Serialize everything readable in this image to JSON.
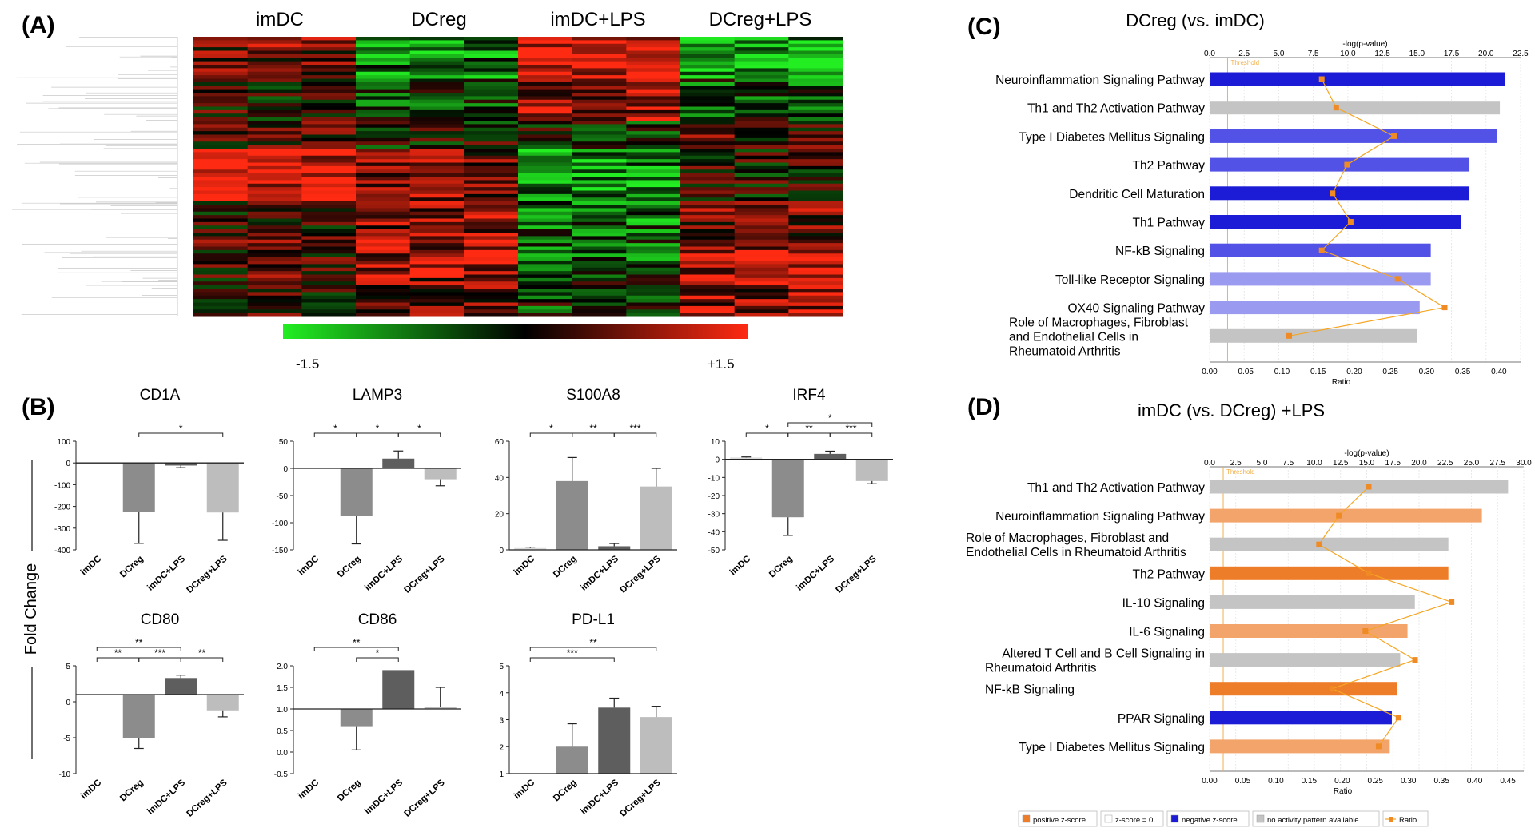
{
  "panels": {
    "A": "(A)",
    "B": "(B)",
    "C": "(C)",
    "D": "(D)"
  },
  "heatmap": {
    "groups": [
      "imDC",
      "DCreg",
      "imDC+LPS",
      "DCreg+LPS"
    ],
    "scale_min": "-1.5",
    "scale_max": "+1.5",
    "colors": {
      "low": "#22ee22",
      "mid": "#000000",
      "high": "#ff2a12"
    }
  },
  "bar_panel": {
    "ylabel": "Fold Change",
    "bar_colors": [
      "#dcdcdc",
      "#8c8c8c",
      "#5e5e5e",
      "#bdbdbd"
    ]
  },
  "ipa_legend": [
    "positive z-score",
    "z-score = 0",
    "negative z-score",
    "no activity pattern available",
    "Ratio"
  ],
  "ipa_colors": {
    "threshold": "#f2b04a",
    "ratio_line": "#f5a623",
    "ratio_marker": "#f08a24",
    "neg_dark": "#1c1cd6",
    "neg_mid": "#5252e6",
    "neg_light": "#9a9af0",
    "pos_dark": "#ee7d2a",
    "pos_light": "#f3a46a",
    "none": "#c4c4c4"
  },
  "chart_data": [
    {
      "id": "CD1A",
      "type": "bar",
      "title": "CD1A",
      "categories": [
        "imDC",
        "DCreg",
        "imDC+LPS",
        "DCreg+LPS"
      ],
      "values": [
        0,
        -225,
        -12,
        -228
      ],
      "errors": [
        0,
        145,
        10,
        128
      ],
      "ylim": [
        -400,
        100
      ],
      "yticks": [
        "100",
        "0",
        "-100",
        "-200",
        "-300",
        "-400"
      ],
      "baseline": 0,
      "sig": [
        {
          "from": 1,
          "to": 3,
          "label": "*"
        }
      ]
    },
    {
      "id": "LAMP3",
      "type": "bar",
      "title": "LAMP3",
      "categories": [
        "imDC",
        "DCreg",
        "imDC+LPS",
        "DCreg+LPS"
      ],
      "values": [
        0,
        -87,
        18,
        -20
      ],
      "errors": [
        0,
        52,
        14,
        12
      ],
      "ylim": [
        -150,
        50
      ],
      "yticks": [
        "50",
        "0",
        "-50",
        "-100",
        "-150"
      ],
      "baseline": 0,
      "sig": [
        {
          "from": 0,
          "to": 1,
          "label": "*"
        },
        {
          "from": 1,
          "to": 2,
          "label": "*"
        },
        {
          "from": 2,
          "to": 3,
          "label": "*"
        }
      ]
    },
    {
      "id": "S100A8",
      "type": "bar",
      "title": "S100A8",
      "categories": [
        "imDC",
        "DCreg",
        "imDC+LPS",
        "DCreg+LPS"
      ],
      "values": [
        1,
        38,
        2,
        35
      ],
      "errors": [
        0.5,
        13,
        1.5,
        10
      ],
      "ylim": [
        0,
        60
      ],
      "yticks": [
        "60",
        "40",
        "20",
        "0"
      ],
      "baseline": 0,
      "sig": [
        {
          "from": 0,
          "to": 1,
          "label": "*"
        },
        {
          "from": 1,
          "to": 2,
          "label": "**"
        },
        {
          "from": 2,
          "to": 3,
          "label": "***"
        }
      ]
    },
    {
      "id": "IRF4",
      "type": "bar",
      "title": "IRF4",
      "categories": [
        "imDC",
        "DCreg",
        "imDC+LPS",
        "DCreg+LPS"
      ],
      "values": [
        1,
        -32,
        3,
        -12
      ],
      "errors": [
        0.3,
        10,
        1.5,
        1.5
      ],
      "ylim": [
        -50,
        10
      ],
      "yticks": [
        "10",
        "0",
        "-10",
        "-20",
        "-30",
        "-40",
        "-50"
      ],
      "baseline": 0,
      "sig": [
        {
          "from": 0,
          "to": 1,
          "label": "*"
        },
        {
          "from": 1,
          "to": 2,
          "label": "**"
        },
        {
          "from": 2,
          "to": 3,
          "label": "***"
        },
        {
          "from": 1,
          "to": 3,
          "label": "*"
        }
      ]
    },
    {
      "id": "CD80",
      "type": "bar",
      "title": "CD80",
      "categories": [
        "imDC",
        "DCreg",
        "imDC+LPS",
        "DCreg+LPS"
      ],
      "values": [
        1,
        -5,
        3.3,
        -1.2
      ],
      "errors": [
        0,
        1.5,
        0.4,
        0.9
      ],
      "ylim": [
        -10,
        5
      ],
      "yticks": [
        "5",
        "0",
        "-5",
        "-10"
      ],
      "baseline": 1,
      "sig": [
        {
          "from": 0,
          "to": 1,
          "label": "**"
        },
        {
          "from": 1,
          "to": 2,
          "label": "***"
        },
        {
          "from": 2,
          "to": 3,
          "label": "**"
        },
        {
          "from": 0,
          "to": 2,
          "label": "**"
        }
      ]
    },
    {
      "id": "CD86",
      "type": "bar",
      "title": "CD86",
      "categories": [
        "imDC",
        "DCreg",
        "imDC+LPS",
        "DCreg+LPS"
      ],
      "values": [
        1,
        0.6,
        1.9,
        1.05
      ],
      "errors": [
        0,
        0.55,
        0,
        0.45
      ],
      "ylim": [
        -0.5,
        2.0
      ],
      "yticks": [
        "2.0",
        "1.5",
        "1.0",
        "0.5",
        "0.0",
        "-0.5"
      ],
      "baseline": 1,
      "sig": [
        {
          "from": 1,
          "to": 2,
          "label": "*"
        },
        {
          "from": 0,
          "to": 2,
          "label": "**"
        }
      ]
    },
    {
      "id": "PD-L1",
      "type": "bar",
      "title": "PD-L1",
      "categories": [
        "imDC",
        "DCreg",
        "imDC+LPS",
        "DCreg+LPS"
      ],
      "values": [
        1,
        2.0,
        3.45,
        3.1
      ],
      "errors": [
        0,
        0.85,
        0.35,
        0.4
      ],
      "ylim": [
        1,
        5
      ],
      "yticks": [
        "5",
        "4",
        "3",
        "2",
        "1"
      ],
      "baseline": 1,
      "sig": [
        {
          "from": 0,
          "to": 2,
          "label": "***"
        },
        {
          "from": 0,
          "to": 3,
          "label": "**"
        }
      ]
    },
    {
      "id": "IPA-C",
      "type": "bar",
      "title": "DCreg (vs. imDC)",
      "top_axis_label": "-log(p-value)",
      "bottom_axis_label": "Ratio",
      "threshold_label": "Threshold",
      "top_ticks": [
        0,
        2.5,
        5.0,
        7.5,
        10.0,
        12.5,
        15.0,
        17.5,
        20.0,
        22.5
      ],
      "top_tick_labels": [
        "0.0",
        "2.5",
        "5.0",
        "7.5",
        "10.0",
        "12.5",
        "15.0",
        "17.5",
        "20.0",
        "22.5"
      ],
      "bottom_ticks": [
        0,
        0.05,
        0.1,
        0.15,
        0.2,
        0.25,
        0.3,
        0.35,
        0.4
      ],
      "bottom_tick_labels": [
        "0.00",
        "0.05",
        "0.10",
        "0.15",
        "0.20",
        "0.25",
        "0.30",
        "0.35",
        "0.40"
      ],
      "top_max": 22.5,
      "ratio_max": 0.43,
      "threshold": 1.3,
      "pathways": [
        {
          "label": [
            "Neuroinflammation Signaling Pathway"
          ],
          "logp": 21.4,
          "ratio": 0.155,
          "color": "neg_dark"
        },
        {
          "label": [
            "Th1 and Th2 Activation Pathway"
          ],
          "logp": 21.0,
          "ratio": 0.175,
          "color": "none"
        },
        {
          "label": [
            "Type I Diabetes Mellitus Signaling"
          ],
          "logp": 20.8,
          "ratio": 0.255,
          "color": "neg_mid"
        },
        {
          "label": [
            "Th2 Pathway"
          ],
          "logp": 18.8,
          "ratio": 0.19,
          "color": "neg_mid"
        },
        {
          "label": [
            "Dendritic Cell Maturation"
          ],
          "logp": 18.8,
          "ratio": 0.17,
          "color": "neg_dark"
        },
        {
          "label": [
            "Th1 Pathway"
          ],
          "logp": 18.2,
          "ratio": 0.195,
          "color": "neg_dark"
        },
        {
          "label": [
            "NF-kB Signaling"
          ],
          "logp": 16.0,
          "ratio": 0.155,
          "color": "neg_mid"
        },
        {
          "label": [
            "Toll-like Receptor Signaling"
          ],
          "logp": 16.0,
          "ratio": 0.26,
          "color": "neg_light"
        },
        {
          "label": [
            "OX40 Signaling Pathway"
          ],
          "logp": 15.2,
          "ratio": 0.325,
          "color": "neg_light"
        },
        {
          "label": [
            "Role of Macrophages, Fibroblast",
            "and Endothelial Cells in",
            "Rheumatoid Arthritis"
          ],
          "logp": 15.0,
          "ratio": 0.11,
          "color": "none"
        }
      ]
    },
    {
      "id": "IPA-D",
      "type": "bar",
      "title": "imDC (vs. DCreg) +LPS",
      "top_axis_label": "-log(p-value)",
      "bottom_axis_label": "Ratio",
      "threshold_label": "Threshold",
      "top_ticks": [
        0,
        2.5,
        5.0,
        7.5,
        10.0,
        12.5,
        15.0,
        17.5,
        20.0,
        22.5,
        25.0,
        27.5,
        30.0
      ],
      "top_tick_labels": [
        "0.0",
        "2.5",
        "5.0",
        "7.5",
        "10.0",
        "12.5",
        "15.0",
        "17.5",
        "20.0",
        "22.5",
        "25.0",
        "27.5",
        "30.0"
      ],
      "bottom_ticks": [
        0,
        0.05,
        0.1,
        0.15,
        0.2,
        0.25,
        0.3,
        0.35,
        0.4,
        0.45
      ],
      "bottom_tick_labels": [
        "0.00",
        "0.05",
        "0.10",
        "0.15",
        "0.20",
        "0.25",
        "0.30",
        "0.35",
        "0.40",
        "0.45"
      ],
      "top_max": 30.0,
      "ratio_max": 0.474,
      "threshold": 1.3,
      "pathways": [
        {
          "label": [
            "Th1 and Th2 Activation Pathway"
          ],
          "logp": 28.5,
          "ratio": 0.24,
          "color": "none"
        },
        {
          "label": [
            "Neuroinflammation Signaling Pathway"
          ],
          "logp": 26.0,
          "ratio": 0.195,
          "color": "pos_light"
        },
        {
          "label": [
            "Role of Macrophages, Fibroblast and",
            "Endothelial Cells in Rheumatoid Arthritis"
          ],
          "logp": 22.8,
          "ratio": 0.165,
          "color": "none"
        },
        {
          "label": [
            "Th2 Pathway"
          ],
          "logp": 22.8,
          "ratio": 0.24,
          "color": "pos_dark"
        },
        {
          "label": [
            "IL-10 Signaling"
          ],
          "logp": 19.6,
          "ratio": 0.365,
          "color": "none"
        },
        {
          "label": [
            "IL-6 Signaling"
          ],
          "logp": 18.9,
          "ratio": 0.235,
          "color": "pos_light"
        },
        {
          "label": [
            "Altered T Cell and B Cell Signaling in",
            "Rheumatoid Arthritis"
          ],
          "logp": 18.2,
          "ratio": 0.31,
          "color": "none"
        },
        {
          "label": [
            "NF-kB Signaling"
          ],
          "logp": 17.9,
          "ratio": 0.185,
          "color": "pos_dark"
        },
        {
          "label": [
            "PPAR Signaling"
          ],
          "logp": 17.4,
          "ratio": 0.285,
          "color": "neg_dark"
        },
        {
          "label": [
            "Type I Diabetes Mellitus Signaling"
          ],
          "logp": 17.2,
          "ratio": 0.255,
          "color": "pos_light"
        }
      ]
    }
  ]
}
